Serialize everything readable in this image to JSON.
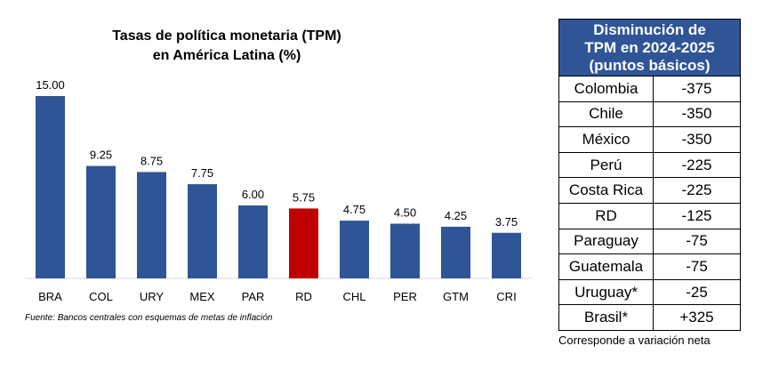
{
  "chart_data": {
    "type": "bar",
    "title_line1": "Tasas de política monetaria (TPM)",
    "title_line2": "en América Latina (%)",
    "categories": [
      "BRA",
      "COL",
      "URY",
      "MEX",
      "PAR",
      "RD",
      "CHL",
      "PER",
      "GTM",
      "CRI"
    ],
    "values": [
      15.0,
      9.25,
      8.75,
      7.75,
      6.0,
      5.75,
      4.75,
      4.5,
      4.25,
      3.75
    ],
    "data_labels": [
      "15.00",
      "9.25",
      "8.75",
      "7.75",
      "6.00",
      "5.75",
      "4.75",
      "4.50",
      "4.25",
      "3.75"
    ],
    "ylim": [
      0,
      15
    ],
    "grid": false,
    "colors": {
      "default": "#2f5597",
      "highlight": "#c00000"
    },
    "highlight_category": "RD",
    "source": "Fuente: Bancos centrales con esquemas de metas de inflación"
  },
  "table": {
    "header_line1": "Disminución de",
    "header_line2": "TPM en 2024-2025",
    "header_line3": "(puntos básicos)",
    "rows": [
      {
        "country": "Colombia",
        "value": "-375"
      },
      {
        "country": "Chile",
        "value": "-350"
      },
      {
        "country": "México",
        "value": "-350"
      },
      {
        "country": "Perú",
        "value": "-225"
      },
      {
        "country": "Costa Rica",
        "value": "-225"
      },
      {
        "country": "RD",
        "value": "-125"
      },
      {
        "country": "Paraguay",
        "value": "-75"
      },
      {
        "country": "Guatemala",
        "value": "-75"
      },
      {
        "country": "Uruguay*",
        "value": "-25"
      },
      {
        "country": "Brasil*",
        "value": "+325"
      }
    ],
    "note": "Corresponde a variación neta",
    "header_color": "#2f5597"
  }
}
